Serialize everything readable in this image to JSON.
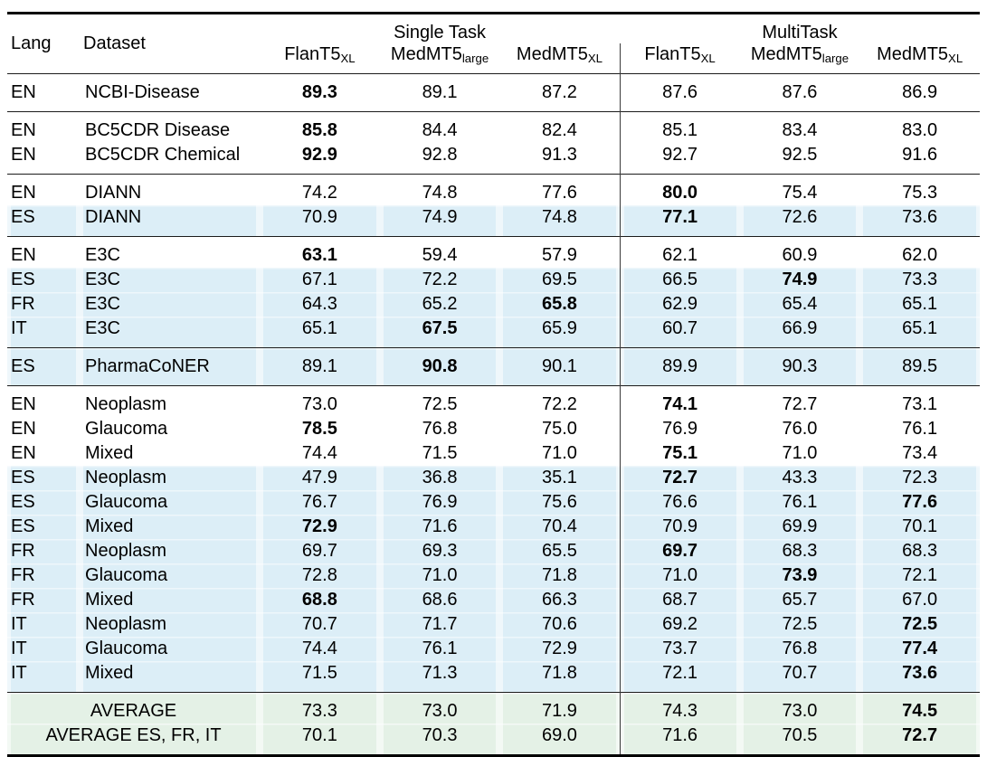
{
  "colors": {
    "highlight_blue": "#dceef7",
    "highlight_green": "#e4f1e6",
    "rule_color": "#000000",
    "divider_color": "#3a3a3a"
  },
  "header": {
    "lang": "Lang",
    "dataset": "Dataset",
    "group_single": "Single Task",
    "group_multi": "MultiTask",
    "models": [
      {
        "base": "FlanT5",
        "sub": "XL"
      },
      {
        "base": "MedMT5",
        "sub": "large"
      },
      {
        "base": "MedMT5",
        "sub": "XL"
      },
      {
        "base": "FlanT5",
        "sub": "XL"
      },
      {
        "base": "MedMT5",
        "sub": "large"
      },
      {
        "base": "MedMT5",
        "sub": "XL"
      }
    ]
  },
  "groups": [
    {
      "rows": [
        {
          "lang": "EN",
          "dataset": "NCBI-Disease",
          "hl": false,
          "values": [
            "89.3",
            "89.1",
            "87.2",
            "87.6",
            "87.6",
            "86.9"
          ],
          "bold": [
            0
          ]
        }
      ]
    },
    {
      "rows": [
        {
          "lang": "EN",
          "dataset": "BC5CDR Disease",
          "hl": false,
          "values": [
            "85.8",
            "84.4",
            "82.4",
            "85.1",
            "83.4",
            "83.0"
          ],
          "bold": [
            0
          ]
        },
        {
          "lang": "EN",
          "dataset": "BC5CDR Chemical",
          "hl": false,
          "values": [
            "92.9",
            "92.8",
            "91.3",
            "92.7",
            "92.5",
            "91.6"
          ],
          "bold": [
            0
          ]
        }
      ]
    },
    {
      "rows": [
        {
          "lang": "EN",
          "dataset": "DIANN",
          "hl": false,
          "values": [
            "74.2",
            "74.8",
            "77.6",
            "80.0",
            "75.4",
            "75.3"
          ],
          "bold": [
            3
          ]
        },
        {
          "lang": "ES",
          "dataset": "DIANN",
          "hl": true,
          "values": [
            "70.9",
            "74.9",
            "74.8",
            "77.1",
            "72.6",
            "73.6"
          ],
          "bold": [
            3
          ]
        }
      ]
    },
    {
      "rows": [
        {
          "lang": "EN",
          "dataset": "E3C",
          "hl": false,
          "values": [
            "63.1",
            "59.4",
            "57.9",
            "62.1",
            "60.9",
            "62.0"
          ],
          "bold": [
            0
          ]
        },
        {
          "lang": "ES",
          "dataset": "E3C",
          "hl": true,
          "values": [
            "67.1",
            "72.2",
            "69.5",
            "66.5",
            "74.9",
            "73.3"
          ],
          "bold": [
            4
          ]
        },
        {
          "lang": "FR",
          "dataset": "E3C",
          "hl": true,
          "values": [
            "64.3",
            "65.2",
            "65.8",
            "62.9",
            "65.4",
            "65.1"
          ],
          "bold": [
            2
          ]
        },
        {
          "lang": "IT",
          "dataset": "E3C",
          "hl": true,
          "values": [
            "65.1",
            "67.5",
            "65.9",
            "60.7",
            "66.9",
            "65.1"
          ],
          "bold": [
            1
          ]
        }
      ]
    },
    {
      "rows": [
        {
          "lang": "ES",
          "dataset": "PharmaCoNER",
          "hl": true,
          "values": [
            "89.1",
            "90.8",
            "90.1",
            "89.9",
            "90.3",
            "89.5"
          ],
          "bold": [
            1
          ]
        }
      ]
    },
    {
      "rows": [
        {
          "lang": "EN",
          "dataset": "Neoplasm",
          "hl": false,
          "values": [
            "73.0",
            "72.5",
            "72.2",
            "74.1",
            "72.7",
            "73.1"
          ],
          "bold": [
            3
          ]
        },
        {
          "lang": "EN",
          "dataset": "Glaucoma",
          "hl": false,
          "values": [
            "78.5",
            "76.8",
            "75.0",
            "76.9",
            "76.0",
            "76.1"
          ],
          "bold": [
            0
          ]
        },
        {
          "lang": "EN",
          "dataset": "Mixed",
          "hl": false,
          "values": [
            "74.4",
            "71.5",
            "71.0",
            "75.1",
            "71.0",
            "73.4"
          ],
          "bold": [
            3
          ]
        },
        {
          "lang": "ES",
          "dataset": "Neoplasm",
          "hl": true,
          "values": [
            "47.9",
            "36.8",
            "35.1",
            "72.7",
            "43.3",
            "72.3"
          ],
          "bold": [
            3
          ]
        },
        {
          "lang": "ES",
          "dataset": "Glaucoma",
          "hl": true,
          "values": [
            "76.7",
            "76.9",
            "75.6",
            "76.6",
            "76.1",
            "77.6"
          ],
          "bold": [
            5
          ]
        },
        {
          "lang": "ES",
          "dataset": "Mixed",
          "hl": true,
          "values": [
            "72.9",
            "71.6",
            "70.4",
            "70.9",
            "69.9",
            "70.1"
          ],
          "bold": [
            0
          ]
        },
        {
          "lang": "FR",
          "dataset": "Neoplasm",
          "hl": true,
          "values": [
            "69.7",
            "69.3",
            "65.5",
            "69.7",
            "68.3",
            "68.3"
          ],
          "bold": [
            3
          ]
        },
        {
          "lang": "FR",
          "dataset": "Glaucoma",
          "hl": true,
          "values": [
            "72.8",
            "71.0",
            "71.8",
            "71.0",
            "73.9",
            "72.1"
          ],
          "bold": [
            4
          ]
        },
        {
          "lang": "FR",
          "dataset": "Mixed",
          "hl": true,
          "values": [
            "68.8",
            "68.6",
            "66.3",
            "68.7",
            "65.7",
            "67.0"
          ],
          "bold": [
            0
          ]
        },
        {
          "lang": "IT",
          "dataset": "Neoplasm",
          "hl": true,
          "values": [
            "70.7",
            "71.7",
            "70.6",
            "69.2",
            "72.5",
            "72.5"
          ],
          "bold": [
            5
          ]
        },
        {
          "lang": "IT",
          "dataset": "Glaucoma",
          "hl": true,
          "values": [
            "74.4",
            "76.1",
            "72.9",
            "73.7",
            "76.8",
            "77.4"
          ],
          "bold": [
            5
          ]
        },
        {
          "lang": "IT",
          "dataset": "Mixed",
          "hl": true,
          "values": [
            "71.5",
            "71.3",
            "71.8",
            "72.1",
            "70.7",
            "73.6"
          ],
          "bold": [
            5
          ]
        }
      ]
    }
  ],
  "footer": {
    "rows": [
      {
        "label": "AVERAGE",
        "values": [
          "73.3",
          "73.0",
          "71.9",
          "74.3",
          "73.0",
          "74.5"
        ],
        "bold": [
          5
        ]
      },
      {
        "label": "AVERAGE ES, FR, IT",
        "values": [
          "70.1",
          "70.3",
          "69.0",
          "71.6",
          "70.5",
          "72.7"
        ],
        "bold": [
          5
        ]
      }
    ]
  }
}
